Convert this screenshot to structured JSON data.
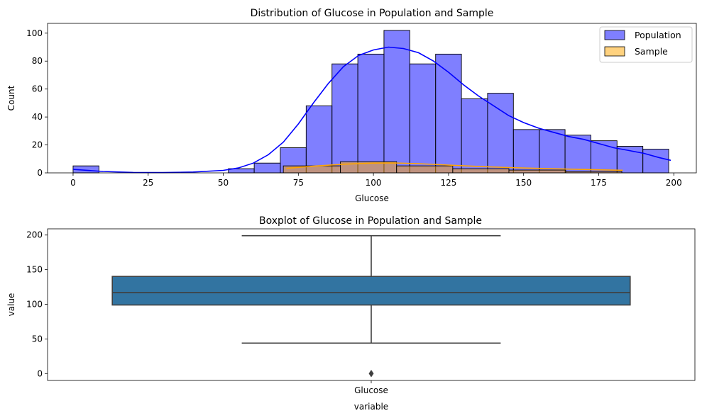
{
  "chart_data": [
    {
      "type": "bar",
      "subtype": "histogram",
      "title": "Distribution of Glucose in Population and Sample",
      "xlabel": "Glucose",
      "ylabel": "Count",
      "xlim": [
        -8.5,
        207.5
      ],
      "ylim": [
        0,
        107
      ],
      "xticks": [
        0,
        25,
        50,
        75,
        100,
        125,
        150,
        175,
        200
      ],
      "yticks": [
        0,
        20,
        40,
        60,
        80,
        100
      ],
      "grid": false,
      "legend_position": "top-right",
      "series": [
        {
          "name": "Population",
          "color": "#0000ff",
          "kde_color": "#0000ff",
          "bins": [
            {
              "x0": 0,
              "x1": 8.6,
              "count": 5
            },
            {
              "x0": 51.7,
              "x1": 60.3,
              "count": 3
            },
            {
              "x0": 60.3,
              "x1": 69.0,
              "count": 7
            },
            {
              "x0": 69.0,
              "x1": 77.6,
              "count": 18
            },
            {
              "x0": 77.6,
              "x1": 86.2,
              "count": 48
            },
            {
              "x0": 86.2,
              "x1": 94.8,
              "count": 78
            },
            {
              "x0": 94.8,
              "x1": 103.5,
              "count": 85
            },
            {
              "x0": 103.5,
              "x1": 112.1,
              "count": 102
            },
            {
              "x0": 112.1,
              "x1": 120.7,
              "count": 78
            },
            {
              "x0": 120.7,
              "x1": 129.3,
              "count": 85
            },
            {
              "x0": 129.3,
              "x1": 138.0,
              "count": 53
            },
            {
              "x0": 138.0,
              "x1": 146.6,
              "count": 57
            },
            {
              "x0": 146.6,
              "x1": 155.2,
              "count": 31
            },
            {
              "x0": 155.2,
              "x1": 163.8,
              "count": 31
            },
            {
              "x0": 163.8,
              "x1": 172.4,
              "count": 27
            },
            {
              "x0": 172.4,
              "x1": 181.1,
              "count": 23
            },
            {
              "x0": 181.1,
              "x1": 189.7,
              "count": 19
            },
            {
              "x0": 189.7,
              "x1": 198.3,
              "count": 17
            }
          ],
          "kde": {
            "x": [
              0,
              10,
              20,
              30,
              40,
              50,
              55,
              60,
              65,
              70,
              75,
              80,
              85,
              90,
              95,
              100,
              105,
              110,
              115,
              120,
              125,
              130,
              135,
              140,
              145,
              150,
              155,
              160,
              165,
              170,
              175,
              180,
              185,
              190,
              195,
              199
            ],
            "y": [
              2.5,
              1.0,
              0.3,
              0.2,
              0.6,
              1.8,
              3.5,
              7,
              13,
              22,
              35,
              50,
              64,
              76,
              84,
              88,
              90,
              89,
              86,
              80,
              72,
              63,
              55,
              48,
              41,
              36,
              32,
              29,
              26,
              24,
              21,
              18,
              16,
              14,
              11,
              9
            ]
          }
        },
        {
          "name": "Sample",
          "color": "#ffa500",
          "kde_color": "#ffa500",
          "bins": [
            {
              "x0": 70.0,
              "x1": 89.0,
              "count": 5
            },
            {
              "x0": 89.0,
              "x1": 107.7,
              "count": 8
            },
            {
              "x0": 107.7,
              "x1": 126.4,
              "count": 5
            },
            {
              "x0": 126.4,
              "x1": 145.1,
              "count": 3
            },
            {
              "x0": 145.1,
              "x1": 164.0,
              "count": 2
            },
            {
              "x0": 164.0,
              "x1": 182.7,
              "count": 1
            }
          ],
          "kde": {
            "x": [
              71,
              80,
              90,
              100,
              107,
              115,
              125,
              135,
              145,
              155,
              165,
              175,
              183
            ],
            "y": [
              3.2,
              4.8,
              6.2,
              7.0,
              7.1,
              6.6,
              5.6,
              4.6,
              3.8,
              3.2,
              2.7,
              2.2,
              1.9
            ]
          }
        }
      ]
    },
    {
      "type": "box",
      "title": "Boxplot of Glucose in Population and Sample",
      "xlabel": "variable",
      "ylabel": "value",
      "ylim": [
        -9.95,
        208.95
      ],
      "yticks": [
        0,
        50,
        100,
        150,
        200
      ],
      "categories": [
        "Glucose"
      ],
      "grid": false,
      "boxes": [
        {
          "category": "Glucose",
          "color": "#3274a1",
          "whisker_low": 44,
          "q1": 99,
          "median": 117,
          "q3": 140.25,
          "whisker_high": 199,
          "outliers": [
            0
          ]
        }
      ]
    }
  ]
}
